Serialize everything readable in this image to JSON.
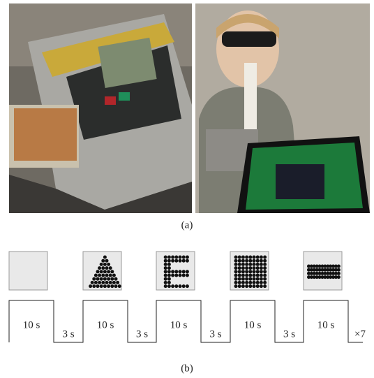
{
  "panel_a": {
    "label": "(a)"
  },
  "panel_b": {
    "label": "(b)",
    "on_labels": [
      "10 s",
      "10 s",
      "10 s",
      "10 s",
      "10 s"
    ],
    "off_labels": [
      "3 s",
      "3 s",
      "3 s",
      "3 s"
    ],
    "repeat": "×7"
  }
}
